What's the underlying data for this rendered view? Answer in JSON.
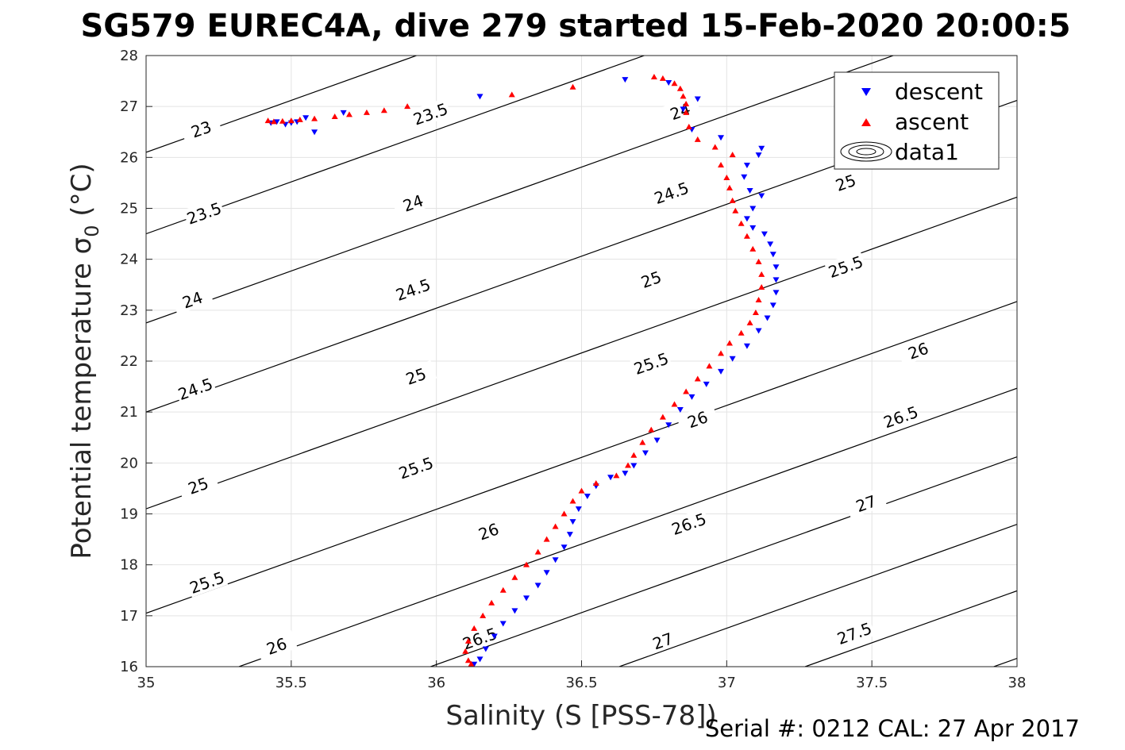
{
  "chart_data": {
    "type": "scatter",
    "title": "SG579 EUREC4A, dive 279 started 15-Feb-2020 20:00:5",
    "xlabel": "Salinity (S [PSS-78])",
    "ylabel_main": "Potential temperature σ",
    "ylabel_sub": "0",
    "ylabel_unit": "(°C)",
    "xlim": [
      35,
      38
    ],
    "ylim": [
      16,
      28
    ],
    "xticks": [
      "35",
      "35.5",
      "36",
      "36.5",
      "37",
      "37.5",
      "38"
    ],
    "yticks": [
      "16",
      "17",
      "18",
      "19",
      "20",
      "21",
      "22",
      "23",
      "24",
      "25",
      "26",
      "27",
      "28"
    ],
    "grid": true,
    "legend_position": "top-right",
    "legend": [
      "descent",
      "ascent",
      "data1"
    ],
    "footer": "Serial #: 0212  CAL: 27 Apr 2017",
    "contours": [
      {
        "level": "23",
        "x0": 35,
        "y0": 26.1,
        "slope": 2.04
      },
      {
        "level": "23.5",
        "x0": 35,
        "y0": 24.5,
        "slope": 2.04
      },
      {
        "level": "24",
        "x0": 35,
        "y0": 22.75,
        "slope": 2.04
      },
      {
        "level": "24.5",
        "x0": 35,
        "y0": 21.0,
        "slope": 2.04
      },
      {
        "level": "25",
        "x0": 35,
        "y0": 19.1,
        "slope": 2.04
      },
      {
        "level": "25.5",
        "x0": 35,
        "y0": 17.05,
        "slope": 2.04
      },
      {
        "level": "26",
        "x0": 35.32,
        "y0": 16,
        "slope": 2.04
      },
      {
        "level": "26.5",
        "x0": 35.98,
        "y0": 16,
        "slope": 2.04
      },
      {
        "level": "27",
        "x0": 36.63,
        "y0": 16,
        "slope": 2.04
      },
      {
        "level": "27.5",
        "x0": 37.27,
        "y0": 16,
        "slope": 2.04
      },
      {
        "level": "",
        "x0": 37.92,
        "y0": 16,
        "slope": 2.04
      }
    ],
    "contour_labels": [
      {
        "text": "23",
        "x": 35.19,
        "y": 26.55
      },
      {
        "text": "23.5",
        "x": 35.98,
        "y": 26.85
      },
      {
        "text": "24",
        "x": 36.84,
        "y": 26.9
      },
      {
        "text": "23.5",
        "x": 35.2,
        "y": 24.9
      },
      {
        "text": "24",
        "x": 35.92,
        "y": 25.1
      },
      {
        "text": "24.5",
        "x": 36.81,
        "y": 25.3
      },
      {
        "text": "25",
        "x": 37.41,
        "y": 25.5
      },
      {
        "text": "24",
        "x": 35.16,
        "y": 23.2
      },
      {
        "text": "24.5",
        "x": 35.92,
        "y": 23.4
      },
      {
        "text": "25",
        "x": 36.74,
        "y": 23.6
      },
      {
        "text": "25.5",
        "x": 37.41,
        "y": 23.85
      },
      {
        "text": "24.5",
        "x": 35.17,
        "y": 21.45
      },
      {
        "text": "25",
        "x": 35.93,
        "y": 21.7
      },
      {
        "text": "25.5",
        "x": 36.74,
        "y": 21.95
      },
      {
        "text": "26",
        "x": 37.66,
        "y": 22.2
      },
      {
        "text": "25",
        "x": 35.18,
        "y": 19.55
      },
      {
        "text": "25.5",
        "x": 35.93,
        "y": 19.9
      },
      {
        "text": "26",
        "x": 36.9,
        "y": 20.85
      },
      {
        "text": "26.5",
        "x": 37.6,
        "y": 20.9
      },
      {
        "text": "25.5",
        "x": 35.21,
        "y": 17.65
      },
      {
        "text": "26",
        "x": 36.18,
        "y": 18.65
      },
      {
        "text": "26.5",
        "x": 36.87,
        "y": 18.8
      },
      {
        "text": "27",
        "x": 37.48,
        "y": 19.2
      },
      {
        "text": "26",
        "x": 35.45,
        "y": 16.4
      },
      {
        "text": "26.5",
        "x": 36.15,
        "y": 16.55
      },
      {
        "text": "27",
        "x": 36.78,
        "y": 16.5
      },
      {
        "text": "27.5",
        "x": 37.44,
        "y": 16.65
      }
    ],
    "series": [
      {
        "name": "descent",
        "color": "#0000ff",
        "marker": "triangle-down",
        "points": [
          [
            36.15,
            27.2
          ],
          [
            36.65,
            27.53
          ],
          [
            36.8,
            27.47
          ],
          [
            36.9,
            27.15
          ],
          [
            36.85,
            26.95
          ],
          [
            36.88,
            26.55
          ],
          [
            36.98,
            26.39
          ],
          [
            37.12,
            26.18
          ],
          [
            37.11,
            26.05
          ],
          [
            37.07,
            25.85
          ],
          [
            37.06,
            25.62
          ],
          [
            37.08,
            25.35
          ],
          [
            37.12,
            25.25
          ],
          [
            37.09,
            25.0
          ],
          [
            37.07,
            24.8
          ],
          [
            37.09,
            24.62
          ],
          [
            37.13,
            24.5
          ],
          [
            37.15,
            24.3
          ],
          [
            37.16,
            24.1
          ],
          [
            37.17,
            23.85
          ],
          [
            37.17,
            23.6
          ],
          [
            37.17,
            23.35
          ],
          [
            37.16,
            23.1
          ],
          [
            37.14,
            22.85
          ],
          [
            37.11,
            22.6
          ],
          [
            37.07,
            22.3
          ],
          [
            37.02,
            22.05
          ],
          [
            36.98,
            21.8
          ],
          [
            36.93,
            21.55
          ],
          [
            36.88,
            21.3
          ],
          [
            36.84,
            21.05
          ],
          [
            36.8,
            20.75
          ],
          [
            36.76,
            20.45
          ],
          [
            36.72,
            20.2
          ],
          [
            36.68,
            19.95
          ],
          [
            36.65,
            19.8
          ],
          [
            36.6,
            19.72
          ],
          [
            36.55,
            19.55
          ],
          [
            36.52,
            19.35
          ],
          [
            36.49,
            19.1
          ],
          [
            36.47,
            18.85
          ],
          [
            36.46,
            18.6
          ],
          [
            36.44,
            18.35
          ],
          [
            36.41,
            18.1
          ],
          [
            36.38,
            17.85
          ],
          [
            36.35,
            17.6
          ],
          [
            36.31,
            17.35
          ],
          [
            36.27,
            17.1
          ],
          [
            36.23,
            16.85
          ],
          [
            36.2,
            16.6
          ],
          [
            36.17,
            16.35
          ],
          [
            36.15,
            16.15
          ],
          [
            36.13,
            16.05
          ],
          [
            35.52,
            26.7
          ],
          [
            35.48,
            26.65
          ],
          [
            35.45,
            26.7
          ],
          [
            35.43,
            26.68
          ],
          [
            35.58,
            26.5
          ],
          [
            35.68,
            26.88
          ],
          [
            35.55,
            26.78
          ],
          [
            35.5,
            26.68
          ]
        ]
      },
      {
        "name": "ascent",
        "color": "#ff0000",
        "marker": "triangle-up",
        "points": [
          [
            35.42,
            26.72
          ],
          [
            35.44,
            26.7
          ],
          [
            35.47,
            26.71
          ],
          [
            35.5,
            26.72
          ],
          [
            35.53,
            26.74
          ],
          [
            35.58,
            26.76
          ],
          [
            35.65,
            26.8
          ],
          [
            35.7,
            26.84
          ],
          [
            35.76,
            26.88
          ],
          [
            35.82,
            26.92
          ],
          [
            35.9,
            27.0
          ],
          [
            36.26,
            27.23
          ],
          [
            36.47,
            27.38
          ],
          [
            36.75,
            27.58
          ],
          [
            36.78,
            27.55
          ],
          [
            36.82,
            27.45
          ],
          [
            36.84,
            27.35
          ],
          [
            36.85,
            27.2
          ],
          [
            36.86,
            27.05
          ],
          [
            36.86,
            26.88
          ],
          [
            36.87,
            26.6
          ],
          [
            36.9,
            26.35
          ],
          [
            36.96,
            26.2
          ],
          [
            37.02,
            26.05
          ],
          [
            36.98,
            25.85
          ],
          [
            37.0,
            25.6
          ],
          [
            37.01,
            25.4
          ],
          [
            37.02,
            25.15
          ],
          [
            37.03,
            24.95
          ],
          [
            37.05,
            24.7
          ],
          [
            37.07,
            24.45
          ],
          [
            37.09,
            24.2
          ],
          [
            37.11,
            23.95
          ],
          [
            37.12,
            23.7
          ],
          [
            37.12,
            23.45
          ],
          [
            37.11,
            23.2
          ],
          [
            37.1,
            22.95
          ],
          [
            37.08,
            22.75
          ],
          [
            37.05,
            22.55
          ],
          [
            37.01,
            22.35
          ],
          [
            36.98,
            22.15
          ],
          [
            36.94,
            21.9
          ],
          [
            36.9,
            21.65
          ],
          [
            36.86,
            21.4
          ],
          [
            36.82,
            21.15
          ],
          [
            36.78,
            20.9
          ],
          [
            36.74,
            20.65
          ],
          [
            36.71,
            20.4
          ],
          [
            36.68,
            20.15
          ],
          [
            36.66,
            19.95
          ],
          [
            36.62,
            19.75
          ],
          [
            36.55,
            19.6
          ],
          [
            36.5,
            19.45
          ],
          [
            36.47,
            19.25
          ],
          [
            36.44,
            19.0
          ],
          [
            36.41,
            18.75
          ],
          [
            36.38,
            18.5
          ],
          [
            36.35,
            18.25
          ],
          [
            36.31,
            18.0
          ],
          [
            36.27,
            17.75
          ],
          [
            36.23,
            17.5
          ],
          [
            36.19,
            17.25
          ],
          [
            36.16,
            17.0
          ],
          [
            36.13,
            16.75
          ],
          [
            36.11,
            16.5
          ],
          [
            36.1,
            16.3
          ],
          [
            36.11,
            16.12
          ],
          [
            36.12,
            16.05
          ]
        ]
      }
    ]
  }
}
